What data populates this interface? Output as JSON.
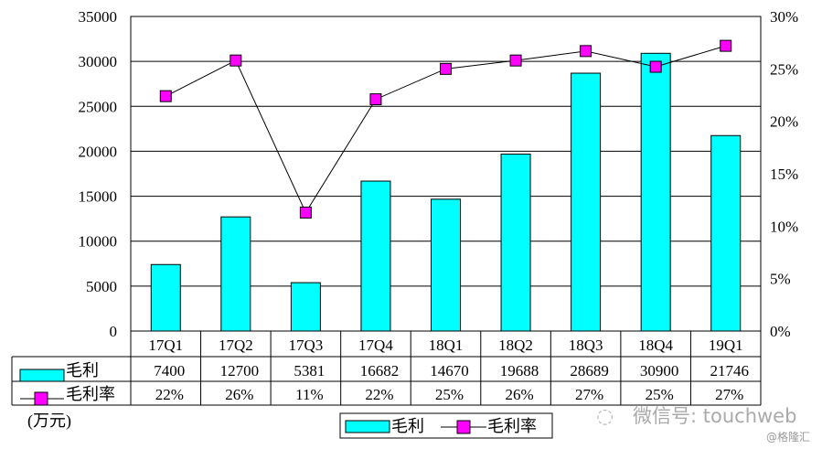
{
  "chart_data": {
    "type": "bar",
    "categories": [
      "17Q1",
      "17Q2",
      "17Q3",
      "17Q4",
      "18Q1",
      "18Q2",
      "18Q3",
      "18Q4",
      "19Q1"
    ],
    "series": [
      {
        "name": "毛利",
        "type": "bar",
        "axis": "left",
        "values": [
          7400,
          12700,
          5381,
          16682,
          14670,
          19688,
          28689,
          30900,
          21746
        ],
        "color": "#00FFFF"
      },
      {
        "name": "毛利率",
        "type": "line",
        "axis": "right",
        "values": [
          22.4,
          25.8,
          11.3,
          22.1,
          25.0,
          25.8,
          26.7,
          25.2,
          27.2
        ],
        "color": "#FF00FF"
      }
    ],
    "table_rows": [
      {
        "label": "毛利",
        "cells": [
          "7400",
          "12700",
          "5381",
          "16682",
          "14670",
          "19688",
          "28689",
          "30900",
          "21746"
        ]
      },
      {
        "label": "毛利率",
        "cells": [
          "22%",
          "26%",
          "11%",
          "22%",
          "25%",
          "26%",
          "27%",
          "25%",
          "27%"
        ]
      }
    ],
    "left_axis": {
      "ylim": [
        0,
        35000
      ],
      "ticks": [
        "0",
        "5000",
        "10000",
        "15000",
        "20000",
        "25000",
        "30000",
        "35000"
      ]
    },
    "right_axis": {
      "ylim": [
        0,
        30
      ],
      "ticks": [
        "0%",
        "5%",
        "10%",
        "15%",
        "20%",
        "25%",
        "30%"
      ]
    },
    "unit_label": "(万元)",
    "grid": true,
    "legend": {
      "placement": "bottom",
      "entries": [
        "毛利",
        "毛利率"
      ]
    }
  },
  "watermark": {
    "text": "微信号: touchweb",
    "source": "@格隆汇"
  }
}
